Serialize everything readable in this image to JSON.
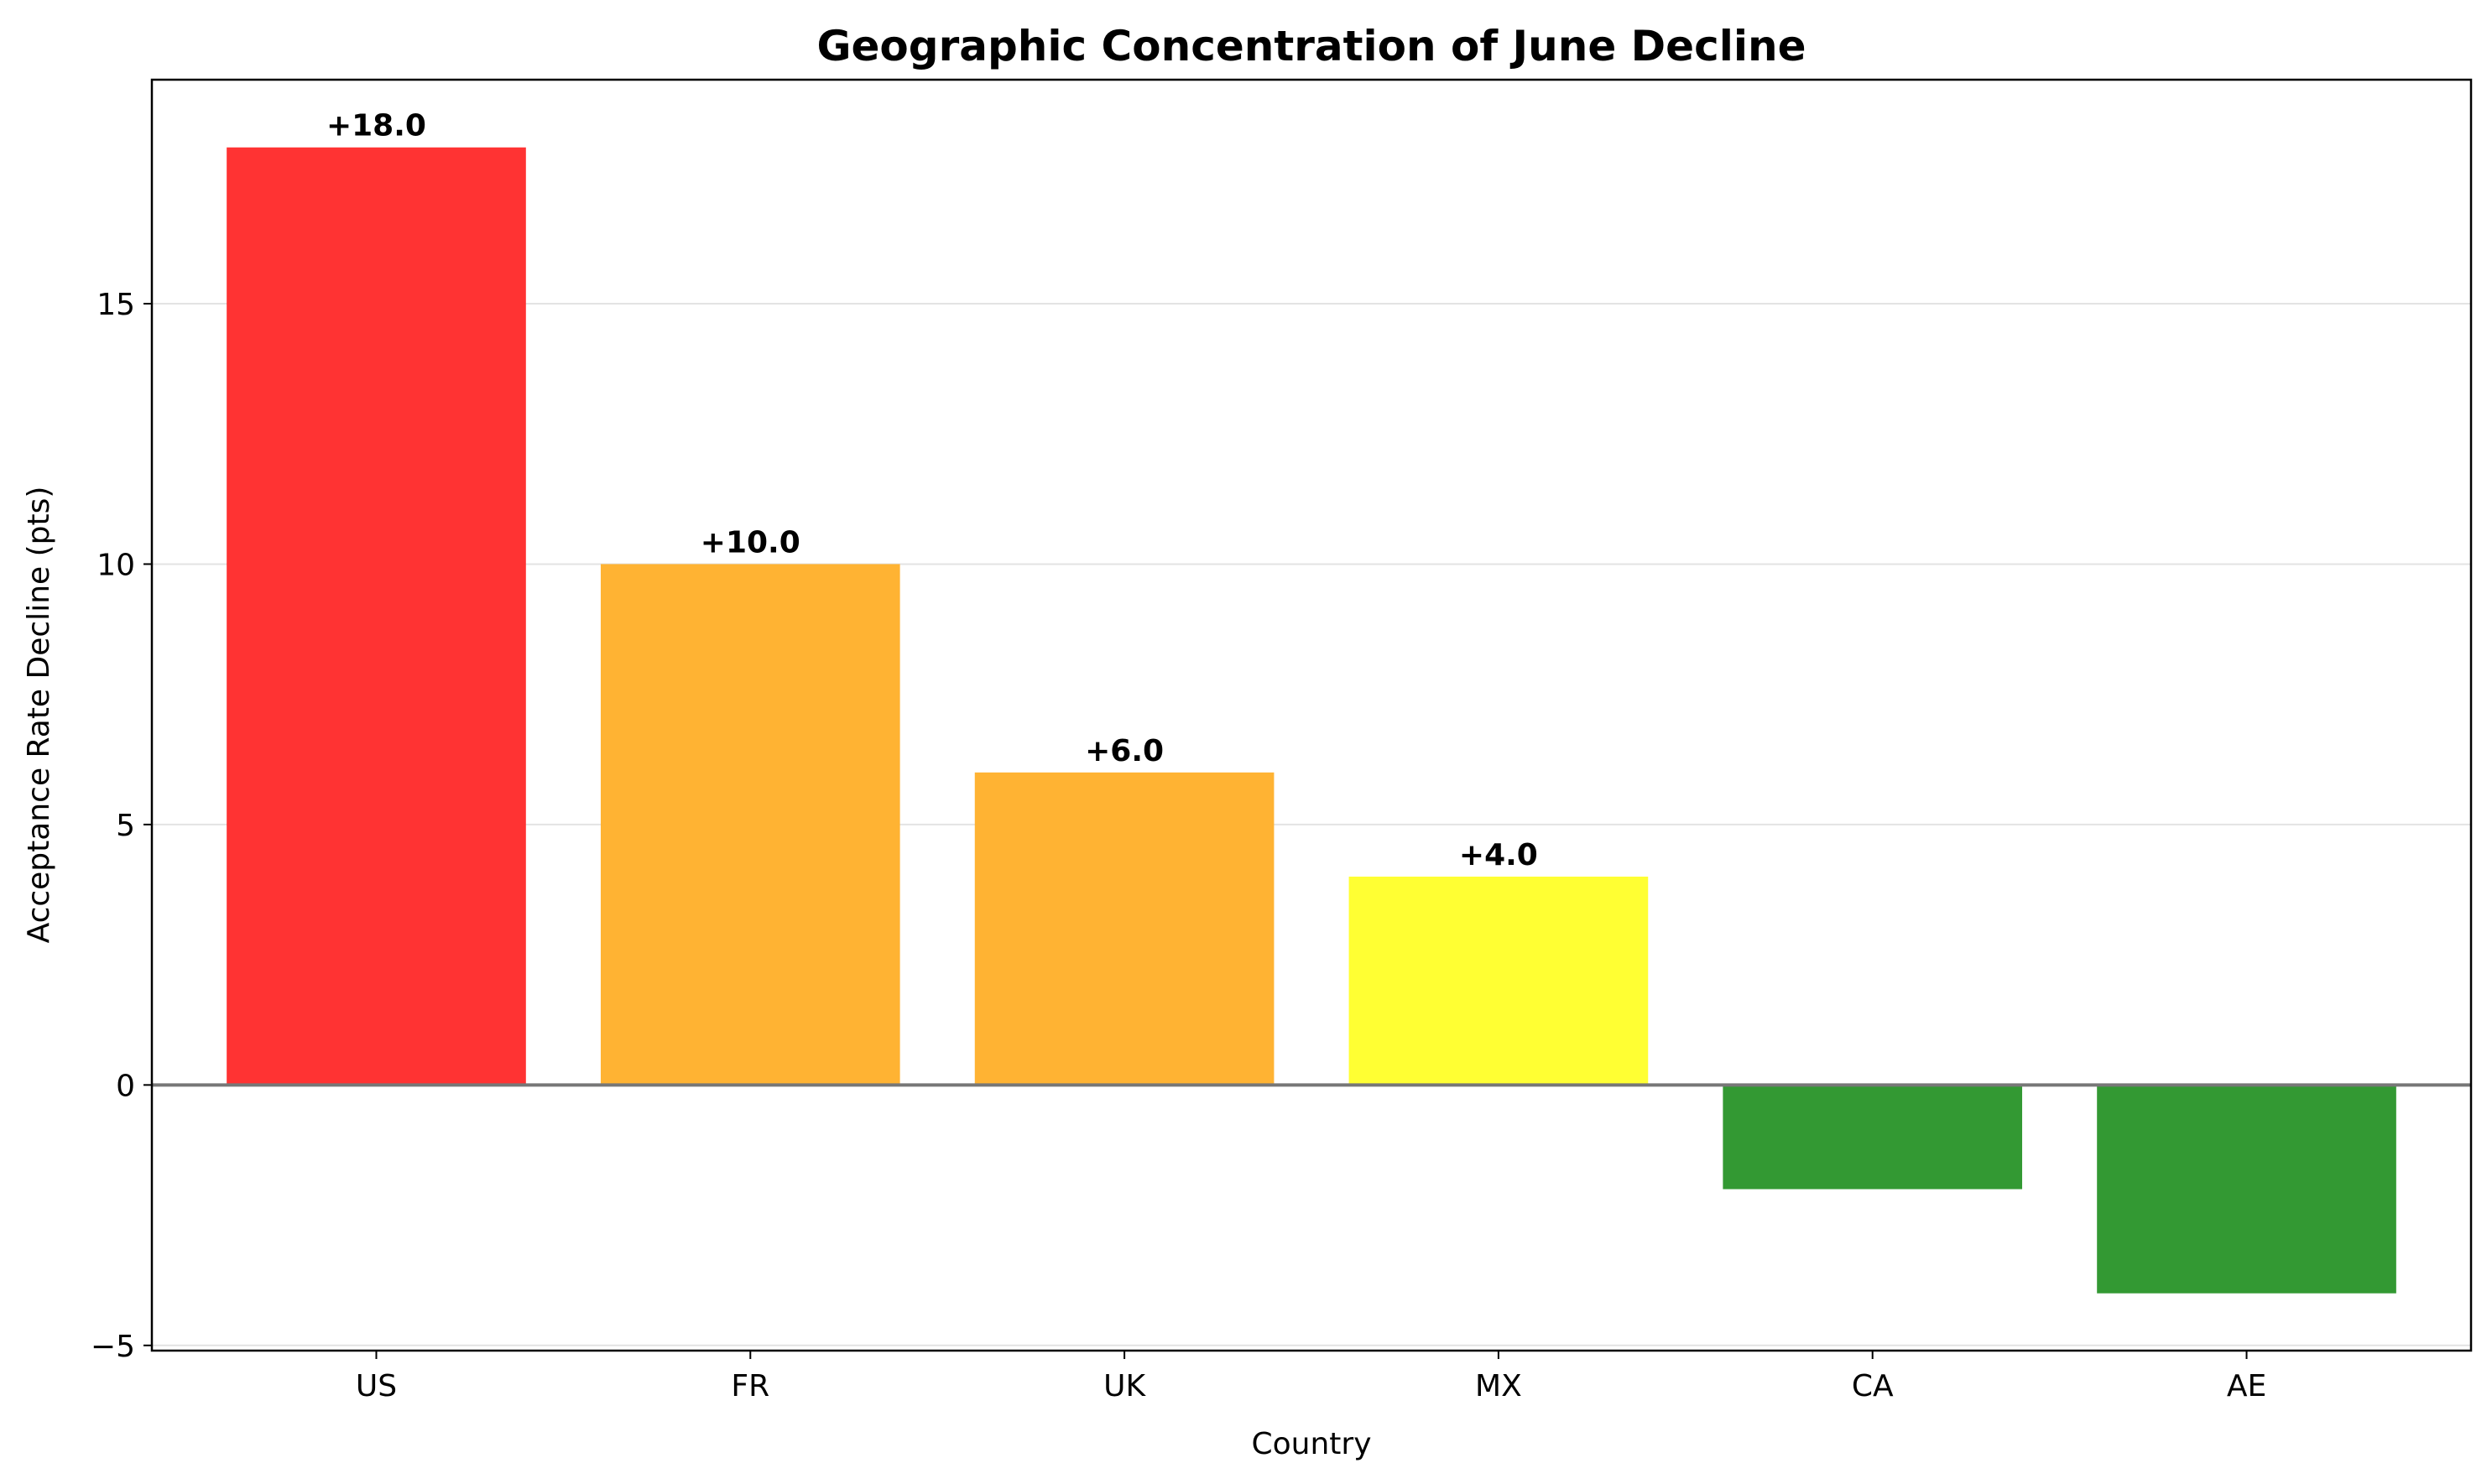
{
  "chart_data": {
    "type": "bar",
    "title": "Geographic Concentration of June Decline",
    "xlabel": "Country",
    "ylabel": "Acceptance Rate Decline (pts)",
    "categories": [
      "US",
      "FR",
      "UK",
      "MX",
      "CA",
      "AE"
    ],
    "values": [
      18.0,
      10.0,
      6.0,
      4.0,
      -2.0,
      -4.0
    ],
    "data_labels": [
      "+18.0",
      "+10.0",
      "+6.0",
      "+4.0",
      "",
      ""
    ],
    "colors": [
      "#ff3333",
      "#ffb333",
      "#ffb333",
      "#ffff33",
      "#339933",
      "#339933"
    ],
    "ylim": [
      -5.1,
      19.3
    ],
    "yticks": [
      -5,
      0,
      5,
      10,
      15
    ],
    "ytick_labels": [
      "−5",
      "0",
      "5",
      "10",
      "15"
    ],
    "grid": "horizontal",
    "zero_line_color": "#777777",
    "legend": "none"
  }
}
